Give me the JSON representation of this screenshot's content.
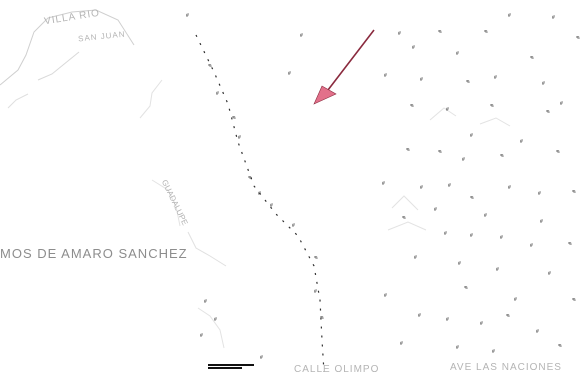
{
  "map": {
    "background": "#ffffff",
    "arrow_color": "#e2708a",
    "arrow_outline": "#8a2a3e",
    "labels": {
      "area_top_left": "VILLA RIO",
      "area_top_left_sub": "SAN JUAN",
      "area_left_mid": "MOS DE AMARO SANCHEZ",
      "lots_left_mid": "GUADALUPE",
      "bottom_center": "CALLE OLIMPO",
      "bottom_right": "AVE LAS NACIONES"
    },
    "lot_marker_text": "#",
    "icons": [
      "location-arrow-icon",
      "scale-bar-icon"
    ]
  }
}
